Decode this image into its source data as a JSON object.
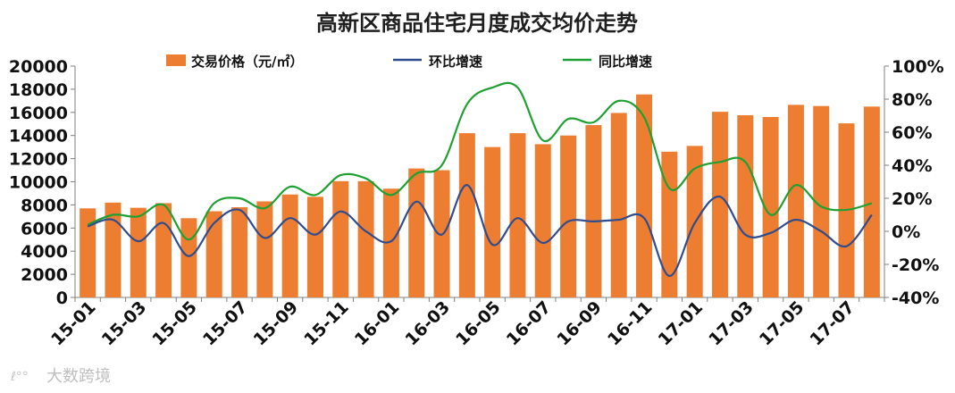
{
  "chart_data": {
    "type": "bar+line",
    "title": "高新区商品住宅月度成交均价走势",
    "categories": [
      "15-01",
      "15-02",
      "15-03",
      "15-04",
      "15-05",
      "15-06",
      "15-07",
      "15-08",
      "15-09",
      "15-10",
      "15-11",
      "15-12",
      "16-01",
      "16-02",
      "16-03",
      "16-04",
      "16-05",
      "16-06",
      "16-07",
      "16-08",
      "16-09",
      "16-10",
      "16-11",
      "16-12",
      "17-01",
      "17-02",
      "17-03",
      "17-04",
      "17-05",
      "17-06",
      "17-07",
      "17-08"
    ],
    "x_tick_labels": [
      "15-01",
      "15-03",
      "15-05",
      "15-07",
      "15-09",
      "15-11",
      "16-01",
      "16-03",
      "16-05",
      "16-07",
      "16-09",
      "16-11",
      "17-01",
      "17-03",
      "17-05",
      "17-07"
    ],
    "series": [
      {
        "name": "交易价格（元/㎡）",
        "type": "bar",
        "axis": "left",
        "color": "#ED7D31",
        "values": [
          7700,
          8200,
          7750,
          8150,
          6850,
          7450,
          7800,
          8300,
          8900,
          8700,
          10050,
          10050,
          9400,
          11150,
          11000,
          14200,
          13000,
          14200,
          13250,
          14000,
          14900,
          15950,
          17550,
          12600,
          13100,
          16050,
          15750,
          15600,
          16650,
          16550,
          15050,
          16500
        ]
      },
      {
        "name": "环比增速",
        "type": "line",
        "axis": "right",
        "color": "#2F4D8E",
        "values": [
          0.03,
          0.07,
          -0.06,
          0.05,
          -0.15,
          0.05,
          0.13,
          -0.04,
          0.08,
          -0.02,
          0.12,
          0.0,
          -0.06,
          0.18,
          -0.02,
          0.28,
          -0.08,
          0.08,
          -0.07,
          0.06,
          0.06,
          0.07,
          0.08,
          -0.27,
          0.05,
          0.21,
          -0.02,
          -0.01,
          0.07,
          0.0,
          -0.09,
          0.1
        ]
      },
      {
        "name": "同比增速",
        "type": "line",
        "axis": "right",
        "color": "#1FA032",
        "values": [
          0.04,
          0.1,
          0.09,
          0.16,
          -0.05,
          0.17,
          0.2,
          0.14,
          0.27,
          0.22,
          0.34,
          0.32,
          0.22,
          0.35,
          0.4,
          0.77,
          0.87,
          0.87,
          0.55,
          0.68,
          0.66,
          0.79,
          0.69,
          0.26,
          0.38,
          0.42,
          0.42,
          0.1,
          0.28,
          0.15,
          0.13,
          0.17
        ]
      }
    ],
    "y_left": {
      "min": 0,
      "max": 20000,
      "step": 2000,
      "tick_labels": [
        "0",
        "2000",
        "4000",
        "6000",
        "8000",
        "10000",
        "12000",
        "14000",
        "16000",
        "18000",
        "20000"
      ]
    },
    "y_right": {
      "min": -0.4,
      "max": 1.0,
      "step": 0.2,
      "tick_labels": [
        "-40%",
        "-20%",
        "0%",
        "20%",
        "40%",
        "60%",
        "80%",
        "100%"
      ]
    },
    "legend_position": "top"
  },
  "watermark": "大数跨境"
}
